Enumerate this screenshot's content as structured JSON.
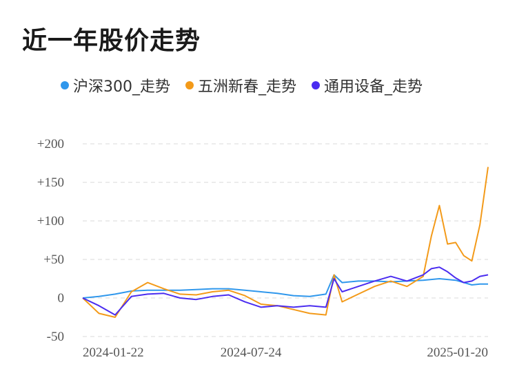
{
  "title": "近一年股价走势",
  "colors": {
    "background": "#ffffff",
    "grid": "#e6e6e6",
    "hs300": "#2f97ec",
    "wzxc": "#f39a19",
    "tysb": "#4a2cf0"
  },
  "chart_data": {
    "type": "line",
    "title": "近一年股价走势",
    "xlabel": "",
    "ylabel": "",
    "ylim": [
      -50,
      200
    ],
    "yticks": [
      -50,
      0,
      50,
      100,
      150,
      200
    ],
    "ytick_labels": [
      "-50",
      "0",
      "+50",
      "+100",
      "+150",
      "+200"
    ],
    "x": [
      0,
      0.04,
      0.08,
      0.12,
      0.16,
      0.2,
      0.24,
      0.28,
      0.32,
      0.36,
      0.4,
      0.44,
      0.48,
      0.52,
      0.56,
      0.6,
      0.62,
      0.64,
      0.68,
      0.72,
      0.76,
      0.8,
      0.84,
      0.86,
      0.88,
      0.9,
      0.92,
      0.94,
      0.96,
      0.98,
      1.0
    ],
    "xticks": [
      0.0,
      0.415,
      1.0
    ],
    "xtick_labels": [
      "2024-01-22",
      "2024-07-24",
      "2025-01-20"
    ],
    "grid": true,
    "legend_position": "top-left",
    "series": [
      {
        "name": "沪深300_走势",
        "color": "#2f97ec",
        "values": [
          0,
          2,
          5,
          9,
          10,
          10,
          10,
          11,
          12,
          12,
          10,
          8,
          6,
          3,
          2,
          5,
          30,
          20,
          22,
          22,
          21,
          22,
          23,
          24,
          25,
          24,
          23,
          20,
          17,
          18,
          18
        ]
      },
      {
        "name": "五洲新春_走势",
        "color": "#f39a19",
        "values": [
          0,
          -20,
          -25,
          8,
          20,
          12,
          5,
          4,
          8,
          10,
          3,
          -8,
          -10,
          -15,
          -20,
          -22,
          30,
          -5,
          5,
          15,
          22,
          15,
          28,
          80,
          120,
          70,
          72,
          55,
          48,
          95,
          170
        ]
      },
      {
        "name": "通用设备_走势",
        "color": "#4a2cf0",
        "values": [
          0,
          -10,
          -22,
          2,
          5,
          6,
          0,
          -2,
          2,
          4,
          -5,
          -12,
          -10,
          -12,
          -10,
          -12,
          25,
          8,
          15,
          22,
          28,
          22,
          30,
          38,
          40,
          34,
          26,
          20,
          22,
          28,
          30
        ]
      }
    ]
  }
}
